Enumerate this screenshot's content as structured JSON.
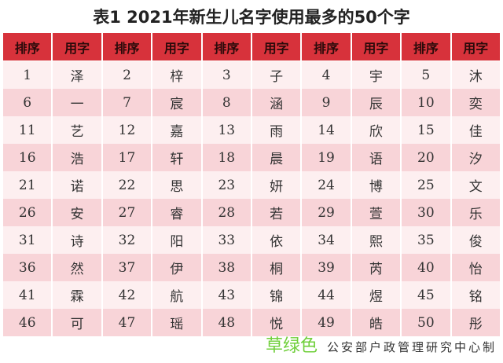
{
  "title": "表1  2021年新生儿名字使用最多的50个字",
  "table": {
    "headers": [
      "排序",
      "用字",
      "排序",
      "用字",
      "排序",
      "用字",
      "排序",
      "用字",
      "排序",
      "用字"
    ],
    "rows": [
      [
        "1",
        "泽",
        "2",
        "梓",
        "3",
        "子",
        "4",
        "宇",
        "5",
        "沐"
      ],
      [
        "6",
        "一",
        "7",
        "宸",
        "8",
        "涵",
        "9",
        "辰",
        "10",
        "奕"
      ],
      [
        "11",
        "艺",
        "12",
        "嘉",
        "13",
        "雨",
        "14",
        "欣",
        "15",
        "佳"
      ],
      [
        "16",
        "浩",
        "17",
        "轩",
        "18",
        "晨",
        "19",
        "语",
        "20",
        "汐"
      ],
      [
        "21",
        "诺",
        "22",
        "思",
        "23",
        "妍",
        "24",
        "博",
        "25",
        "文"
      ],
      [
        "26",
        "安",
        "27",
        "睿",
        "28",
        "若",
        "29",
        "萱",
        "30",
        "乐"
      ],
      [
        "31",
        "诗",
        "32",
        "阳",
        "33",
        "依",
        "34",
        "熙",
        "35",
        "俊"
      ],
      [
        "36",
        "然",
        "37",
        "伊",
        "38",
        "桐",
        "39",
        "芮",
        "40",
        "怡"
      ],
      [
        "41",
        "霖",
        "42",
        "航",
        "43",
        "锦",
        "44",
        "煜",
        "45",
        "铭"
      ],
      [
        "46",
        "可",
        "47",
        "瑶",
        "48",
        "悦",
        "49",
        "皓",
        "50",
        "彤"
      ]
    ]
  },
  "source": "公安部户政管理研究中心制",
  "watermark": "草绿色",
  "colors": {
    "header": "#d7323b",
    "row_light": "#fdeff0",
    "row_pink": "#f8d4d8",
    "watermark": "#6fcf3a"
  }
}
